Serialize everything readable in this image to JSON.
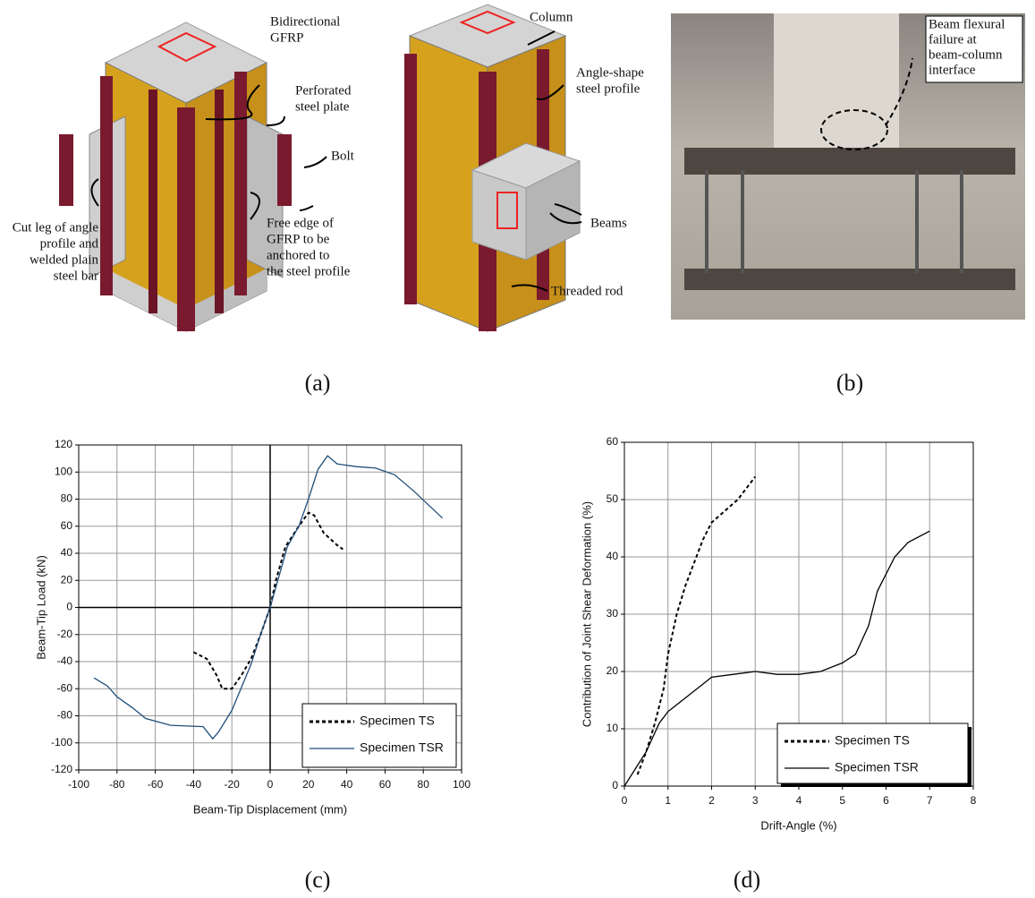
{
  "panel_a": {
    "label": "(a)",
    "annotations": [
      {
        "lines": [
          "Bidirectional",
          "GFRP"
        ]
      },
      {
        "lines": [
          "Perforated",
          "steel plate"
        ]
      },
      {
        "lines": [
          "Bolt"
        ]
      },
      {
        "lines": [
          "Cut leg of angle",
          "profile and",
          "welded plain",
          "steel bar"
        ]
      },
      {
        "lines": [
          "Free edge of",
          "GFRP to be",
          "anchored to",
          "the steel profile"
        ]
      },
      {
        "lines": [
          "Column"
        ]
      },
      {
        "lines": [
          "Angle-shape",
          "steel profile"
        ]
      },
      {
        "lines": [
          "Beams"
        ]
      },
      {
        "lines": [
          "Threaded rod"
        ]
      }
    ]
  },
  "panel_b": {
    "label": "(b)",
    "callout": [
      "Beam flexural",
      "failure at",
      "beam-column",
      "interface"
    ]
  },
  "panel_c": {
    "label": "(c)"
  },
  "panel_d": {
    "label": "(d)"
  },
  "chart_data": [
    {
      "type": "line",
      "x_label": "Beam-Tip Displacement (mm)",
      "y_label": "Beam-Tip Load (kN)",
      "xlim": [
        -100,
        100
      ],
      "ylim": [
        -120,
        120
      ],
      "xticks": [
        -100,
        -80,
        -60,
        -40,
        -20,
        0,
        20,
        40,
        60,
        80,
        100
      ],
      "yticks": [
        -120,
        -100,
        -80,
        -60,
        -40,
        -20,
        0,
        20,
        40,
        60,
        80,
        100,
        120
      ],
      "grid": true,
      "origin_axes": true,
      "legend": "lower right",
      "series": [
        {
          "name": "Specimen TS",
          "color": "#000000",
          "line_style": "dashed",
          "x": [
            -40,
            -33,
            -28,
            -25,
            -20,
            -15,
            -10,
            -5,
            0,
            3,
            8,
            15,
            20,
            23,
            28,
            35,
            38
          ],
          "values": [
            -33,
            -38,
            -50,
            -60,
            -60,
            -50,
            -38,
            -20,
            0,
            20,
            45,
            60,
            70,
            68,
            55,
            46,
            43
          ]
        },
        {
          "name": "Specimen TSR",
          "color": "#1f4e79",
          "line_style": "solid",
          "x": [
            -92,
            -85,
            -80,
            -72,
            -65,
            -52,
            -35,
            -30,
            -27,
            -20,
            -10,
            -5,
            0,
            5,
            9,
            15,
            20,
            25,
            30,
            35,
            45,
            55,
            65,
            75,
            90
          ],
          "values": [
            -52,
            -58,
            -66,
            -74,
            -82,
            -87,
            -88,
            -97,
            -92,
            -76,
            -42,
            -20,
            0,
            25,
            45,
            60,
            80,
            102,
            112,
            106,
            104,
            103,
            98,
            86,
            66
          ]
        }
      ]
    },
    {
      "type": "line",
      "x_label": "Drift-Angle (%)",
      "y_label": "Contribution of Joint Shear Deformation (%)",
      "xlim": [
        0,
        8
      ],
      "ylim": [
        0,
        60
      ],
      "xticks": [
        0,
        1,
        2,
        3,
        4,
        5,
        6,
        7,
        8
      ],
      "yticks": [
        0,
        10,
        20,
        30,
        40,
        50,
        60
      ],
      "grid": true,
      "origin_axes": false,
      "legend": "lower right",
      "series": [
        {
          "name": "Specimen TS",
          "color": "#000000",
          "line_style": "dashed",
          "x": [
            0.3,
            0.5,
            0.7,
            0.9,
            1,
            1.2,
            1.4,
            1.6,
            1.8,
            2,
            2.3,
            2.6,
            3
          ],
          "values": [
            2,
            6,
            11,
            17,
            23,
            30,
            35,
            39,
            43,
            46,
            48,
            50,
            54
          ]
        },
        {
          "name": "Specimen TSR",
          "color": "#000000",
          "line_style": "solid",
          "x": [
            0,
            0.5,
            0.8,
            1,
            1.5,
            2,
            2.5,
            3,
            3.5,
            4,
            4.5,
            5,
            5.3,
            5.6,
            5.8,
            6,
            6.2,
            6.5,
            7
          ],
          "values": [
            0,
            6,
            11,
            13,
            16,
            19,
            19.5,
            20,
            19.5,
            19.5,
            20,
            21.5,
            23,
            28,
            34,
            37,
            40,
            42.5,
            44.5
          ]
        }
      ]
    }
  ]
}
